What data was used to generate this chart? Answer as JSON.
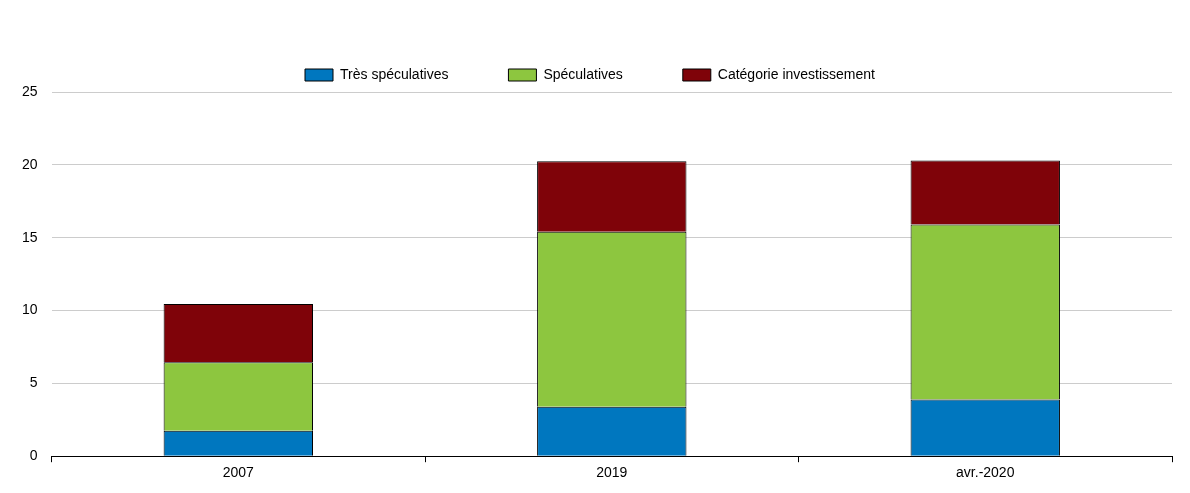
{
  "chart_data": {
    "type": "bar",
    "stacked": true,
    "categories": [
      "2007",
      "2019",
      "avr.-2020"
    ],
    "series": [
      {
        "name": "Très spéculatives",
        "color": "#0077bf",
        "values": [
          1.75,
          3.4,
          3.9
        ]
      },
      {
        "name": "Spéculatives",
        "color": "#8dc63f",
        "values": [
          4.7,
          12.0,
          12.0
        ]
      },
      {
        "name": "Catégorie investissement",
        "color": "#7f0309",
        "values": [
          4.0,
          4.85,
          4.4
        ]
      }
    ],
    "ylim": [
      0,
      25
    ],
    "yticks": [
      0,
      5,
      10,
      15,
      20,
      25
    ],
    "grid": "y",
    "legend": "top"
  }
}
